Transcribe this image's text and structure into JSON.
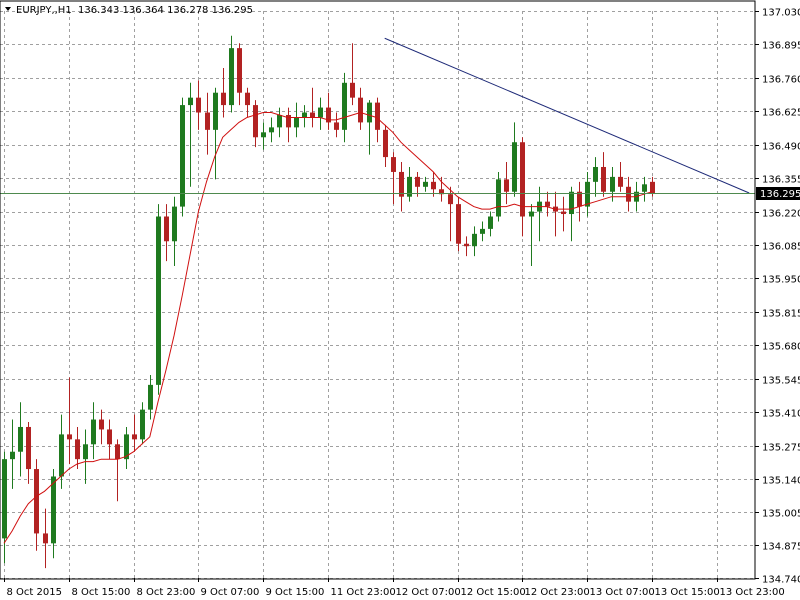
{
  "header": {
    "symbol_timeframe": "EURJPY,,H1",
    "ohlc": "136.343 136.364 136.278 136.295"
  },
  "chart_data": {
    "type": "candlestick",
    "title": "EURJPY,,H1",
    "ylim": [
      134.74,
      137.03
    ],
    "y_ticks": [
      "137.030",
      "136.895",
      "136.760",
      "136.625",
      "136.490",
      "136.355",
      "136.220",
      "136.085",
      "135.950",
      "135.815",
      "135.680",
      "135.545",
      "135.410",
      "135.275",
      "135.140",
      "135.005",
      "134.875",
      "134.740"
    ],
    "x_ticks": [
      {
        "label": "8 Oct 2015",
        "index": 0
      },
      {
        "label": "8 Oct 15:00",
        "index": 8
      },
      {
        "label": "8 Oct 23:00",
        "index": 16
      },
      {
        "label": "9 Oct 07:00",
        "index": 24
      },
      {
        "label": "9 Oct 15:00",
        "index": 32
      },
      {
        "label": "11 Oct 23:00",
        "index": 40
      },
      {
        "label": "12 Oct 07:00",
        "index": 48
      },
      {
        "label": "12 Oct 15:00",
        "index": 56
      },
      {
        "label": "12 Oct 23:00",
        "index": 64
      },
      {
        "label": "13 Oct 07:00",
        "index": 72
      },
      {
        "label": "13 Oct 15:00",
        "index": 80
      },
      {
        "label": "13 Oct 23:00",
        "index": 88
      }
    ],
    "current_price": 136.295,
    "current_price_label": "136.295",
    "colors": {
      "bull": "#1f7a1f",
      "bear": "#b22222",
      "ma": "#d01010",
      "trend": "#1e2a78",
      "grid": "#a0a0a0",
      "price_line": "#4e8a4e",
      "price_label_bg": "#000000"
    },
    "grid": true,
    "candles": [
      {
        "o": 134.9,
        "h": 135.25,
        "l": 134.8,
        "c": 135.22
      },
      {
        "o": 135.22,
        "h": 135.38,
        "l": 135.1,
        "c": 135.25
      },
      {
        "o": 135.25,
        "h": 135.45,
        "l": 135.15,
        "c": 135.35
      },
      {
        "o": 135.35,
        "h": 135.37,
        "l": 135.12,
        "c": 135.18
      },
      {
        "o": 135.18,
        "h": 135.22,
        "l": 134.85,
        "c": 134.92
      },
      {
        "o": 134.92,
        "h": 135.02,
        "l": 134.78,
        "c": 134.88
      },
      {
        "o": 134.88,
        "h": 135.18,
        "l": 134.82,
        "c": 135.15
      },
      {
        "o": 135.15,
        "h": 135.4,
        "l": 135.1,
        "c": 135.32
      },
      {
        "o": 135.32,
        "h": 135.55,
        "l": 135.2,
        "c": 135.3
      },
      {
        "o": 135.3,
        "h": 135.35,
        "l": 135.18,
        "c": 135.22
      },
      {
        "o": 135.22,
        "h": 135.34,
        "l": 135.12,
        "c": 135.28
      },
      {
        "o": 135.28,
        "h": 135.45,
        "l": 135.22,
        "c": 135.38
      },
      {
        "o": 135.38,
        "h": 135.42,
        "l": 135.28,
        "c": 135.34
      },
      {
        "o": 135.34,
        "h": 135.38,
        "l": 135.22,
        "c": 135.28
      },
      {
        "o": 135.28,
        "h": 135.3,
        "l": 135.05,
        "c": 135.22
      },
      {
        "o": 135.22,
        "h": 135.35,
        "l": 135.18,
        "c": 135.32
      },
      {
        "o": 135.32,
        "h": 135.4,
        "l": 135.25,
        "c": 135.3
      },
      {
        "o": 135.3,
        "h": 135.45,
        "l": 135.28,
        "c": 135.42
      },
      {
        "o": 135.42,
        "h": 135.56,
        "l": 135.38,
        "c": 135.52
      },
      {
        "o": 135.52,
        "h": 136.25,
        "l": 135.48,
        "c": 136.2
      },
      {
        "o": 136.2,
        "h": 136.25,
        "l": 136.02,
        "c": 136.1
      },
      {
        "o": 136.1,
        "h": 136.28,
        "l": 136.0,
        "c": 136.24
      },
      {
        "o": 136.24,
        "h": 136.68,
        "l": 136.2,
        "c": 136.65
      },
      {
        "o": 136.65,
        "h": 136.74,
        "l": 136.32,
        "c": 136.68
      },
      {
        "o": 136.68,
        "h": 136.75,
        "l": 136.55,
        "c": 136.62
      },
      {
        "o": 136.62,
        "h": 136.7,
        "l": 136.45,
        "c": 136.55
      },
      {
        "o": 136.55,
        "h": 136.72,
        "l": 136.35,
        "c": 136.7
      },
      {
        "o": 136.7,
        "h": 136.8,
        "l": 136.6,
        "c": 136.65
      },
      {
        "o": 136.65,
        "h": 136.93,
        "l": 136.62,
        "c": 136.88
      },
      {
        "o": 136.88,
        "h": 136.9,
        "l": 136.65,
        "c": 136.7
      },
      {
        "o": 136.7,
        "h": 136.72,
        "l": 136.6,
        "c": 136.65
      },
      {
        "o": 136.65,
        "h": 136.67,
        "l": 136.48,
        "c": 136.52
      },
      {
        "o": 136.52,
        "h": 136.58,
        "l": 136.47,
        "c": 136.54
      },
      {
        "o": 136.54,
        "h": 136.6,
        "l": 136.5,
        "c": 136.56
      },
      {
        "o": 136.56,
        "h": 136.64,
        "l": 136.52,
        "c": 136.61
      },
      {
        "o": 136.61,
        "h": 136.64,
        "l": 136.5,
        "c": 136.56
      },
      {
        "o": 136.56,
        "h": 136.66,
        "l": 136.52,
        "c": 136.6
      },
      {
        "o": 136.6,
        "h": 136.65,
        "l": 136.56,
        "c": 136.62
      },
      {
        "o": 136.62,
        "h": 136.72,
        "l": 136.56,
        "c": 136.6
      },
      {
        "o": 136.6,
        "h": 136.68,
        "l": 136.55,
        "c": 136.64
      },
      {
        "o": 136.64,
        "h": 136.7,
        "l": 136.55,
        "c": 136.58
      },
      {
        "o": 136.58,
        "h": 136.62,
        "l": 136.52,
        "c": 136.55
      },
      {
        "o": 136.55,
        "h": 136.78,
        "l": 136.5,
        "c": 136.74
      },
      {
        "o": 136.74,
        "h": 136.9,
        "l": 136.65,
        "c": 136.68
      },
      {
        "o": 136.68,
        "h": 136.72,
        "l": 136.55,
        "c": 136.58
      },
      {
        "o": 136.58,
        "h": 136.67,
        "l": 136.45,
        "c": 136.66
      },
      {
        "o": 136.66,
        "h": 136.68,
        "l": 136.5,
        "c": 136.55
      },
      {
        "o": 136.55,
        "h": 136.57,
        "l": 136.4,
        "c": 136.44
      },
      {
        "o": 136.44,
        "h": 136.46,
        "l": 136.25,
        "c": 136.38
      },
      {
        "o": 136.38,
        "h": 136.42,
        "l": 136.22,
        "c": 136.28
      },
      {
        "o": 136.28,
        "h": 136.4,
        "l": 136.26,
        "c": 136.36
      },
      {
        "o": 136.36,
        "h": 136.38,
        "l": 136.28,
        "c": 136.32
      },
      {
        "o": 136.32,
        "h": 136.36,
        "l": 136.3,
        "c": 136.34
      },
      {
        "o": 136.34,
        "h": 136.38,
        "l": 136.28,
        "c": 136.31
      },
      {
        "o": 136.31,
        "h": 136.36,
        "l": 136.26,
        "c": 136.29
      },
      {
        "o": 136.29,
        "h": 136.32,
        "l": 136.1,
        "c": 136.25
      },
      {
        "o": 136.25,
        "h": 136.28,
        "l": 136.06,
        "c": 136.09
      },
      {
        "o": 136.09,
        "h": 136.12,
        "l": 136.04,
        "c": 136.08
      },
      {
        "o": 136.08,
        "h": 136.16,
        "l": 136.04,
        "c": 136.13
      },
      {
        "o": 136.13,
        "h": 136.18,
        "l": 136.1,
        "c": 136.15
      },
      {
        "o": 136.15,
        "h": 136.22,
        "l": 136.12,
        "c": 136.2
      },
      {
        "o": 136.2,
        "h": 136.38,
        "l": 136.18,
        "c": 136.35
      },
      {
        "o": 136.35,
        "h": 136.42,
        "l": 136.25,
        "c": 136.3
      },
      {
        "o": 136.3,
        "h": 136.58,
        "l": 136.28,
        "c": 136.5
      },
      {
        "o": 136.5,
        "h": 136.52,
        "l": 136.12,
        "c": 136.2
      },
      {
        "o": 136.2,
        "h": 136.25,
        "l": 136.0,
        "c": 136.22
      },
      {
        "o": 136.22,
        "h": 136.32,
        "l": 136.1,
        "c": 136.26
      },
      {
        "o": 136.26,
        "h": 136.3,
        "l": 136.2,
        "c": 136.24
      },
      {
        "o": 136.24,
        "h": 136.3,
        "l": 136.12,
        "c": 136.22
      },
      {
        "o": 136.22,
        "h": 136.28,
        "l": 136.14,
        "c": 136.21
      },
      {
        "o": 136.21,
        "h": 136.32,
        "l": 136.1,
        "c": 136.3
      },
      {
        "o": 136.3,
        "h": 136.34,
        "l": 136.18,
        "c": 136.24
      },
      {
        "o": 136.24,
        "h": 136.38,
        "l": 136.2,
        "c": 136.34
      },
      {
        "o": 136.34,
        "h": 136.44,
        "l": 136.28,
        "c": 136.4
      },
      {
        "o": 136.4,
        "h": 136.46,
        "l": 136.28,
        "c": 136.3
      },
      {
        "o": 136.3,
        "h": 136.4,
        "l": 136.26,
        "c": 136.36
      },
      {
        "o": 136.36,
        "h": 136.42,
        "l": 136.3,
        "c": 136.32
      },
      {
        "o": 136.32,
        "h": 136.36,
        "l": 136.22,
        "c": 136.26
      },
      {
        "o": 136.26,
        "h": 136.34,
        "l": 136.22,
        "c": 136.3
      },
      {
        "o": 136.3,
        "h": 136.36,
        "l": 136.26,
        "c": 136.33
      },
      {
        "o": 136.34,
        "h": 136.36,
        "l": 136.28,
        "c": 136.295
      }
    ],
    "moving_average": [
      134.88,
      134.93,
      134.99,
      135.04,
      135.07,
      135.09,
      135.12,
      135.15,
      135.18,
      135.2,
      135.21,
      135.21,
      135.22,
      135.22,
      135.22,
      135.23,
      135.25,
      135.28,
      135.31,
      135.45,
      135.58,
      135.72,
      135.88,
      136.05,
      136.22,
      136.34,
      136.44,
      136.52,
      136.55,
      136.58,
      136.6,
      136.61,
      136.62,
      136.62,
      136.61,
      136.6,
      136.6,
      136.6,
      136.6,
      136.6,
      136.59,
      136.59,
      136.6,
      136.61,
      136.62,
      136.61,
      136.6,
      136.57,
      136.54,
      136.5,
      136.47,
      136.44,
      136.41,
      136.38,
      136.34,
      136.31,
      136.28,
      136.26,
      136.24,
      136.23,
      136.23,
      136.24,
      136.24,
      136.25,
      136.24,
      136.24,
      136.24,
      136.24,
      136.23,
      136.23,
      136.23,
      136.24,
      136.25,
      136.26,
      136.27,
      136.28,
      136.28,
      136.28,
      136.28,
      136.29,
      136.3
    ],
    "trendline": {
      "start": {
        "index": 47,
        "price": 136.92
      },
      "end": {
        "index": 92,
        "price": 136.295
      }
    }
  }
}
